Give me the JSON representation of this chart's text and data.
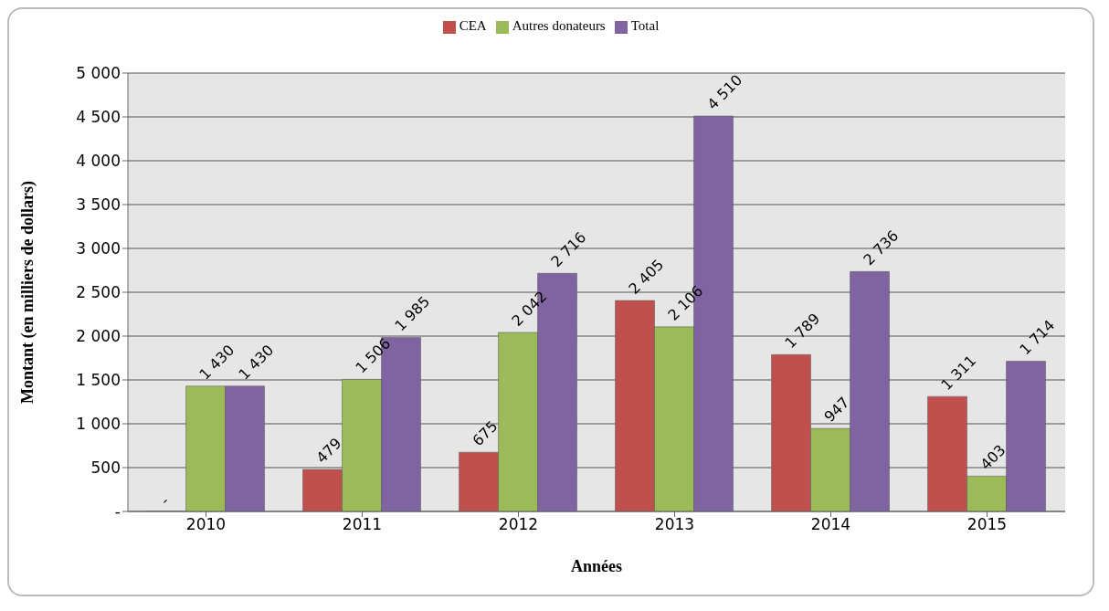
{
  "chart_data": {
    "type": "bar",
    "xlabel": "Années",
    "ylabel": "Montant (en milliers de dollars)",
    "categories": [
      "2010",
      "2011",
      "2012",
      "2013",
      "2014",
      "2015"
    ],
    "series": [
      {
        "name": "CEA",
        "color": "#c0504d",
        "values": [
          0,
          479,
          675,
          2405,
          1789,
          1311
        ],
        "value_labels": [
          "-",
          "479",
          "675",
          "2 405",
          "1 789",
          "1 311"
        ]
      },
      {
        "name": "Autres donateurs",
        "color": "#9bbb59",
        "values": [
          1430,
          1506,
          2042,
          2106,
          947,
          403
        ],
        "value_labels": [
          "1 430",
          "1 506",
          "2 042",
          "2 106",
          "947",
          "403"
        ]
      },
      {
        "name": "Total",
        "color": "#8064a2",
        "values": [
          1430,
          1985,
          2716,
          4510,
          2736,
          1714
        ],
        "value_labels": [
          "1 430",
          "1 985",
          "2 716",
          "4 510",
          "2 736",
          "1 714"
        ]
      }
    ],
    "ylim": [
      0,
      5000
    ],
    "yticks": [
      {
        "value": 0,
        "label": "-"
      },
      {
        "value": 500,
        "label": "500"
      },
      {
        "value": 1000,
        "label": "1 000"
      },
      {
        "value": 1500,
        "label": "1 500"
      },
      {
        "value": 2000,
        "label": "2 000"
      },
      {
        "value": 2500,
        "label": "2 500"
      },
      {
        "value": 3000,
        "label": "3 000"
      },
      {
        "value": 3500,
        "label": "3 500"
      },
      {
        "value": 4000,
        "label": "4 000"
      },
      {
        "value": 4500,
        "label": "4 500"
      },
      {
        "value": 5000,
        "label": "5 000"
      }
    ],
    "grid": "y",
    "legend": "top"
  }
}
